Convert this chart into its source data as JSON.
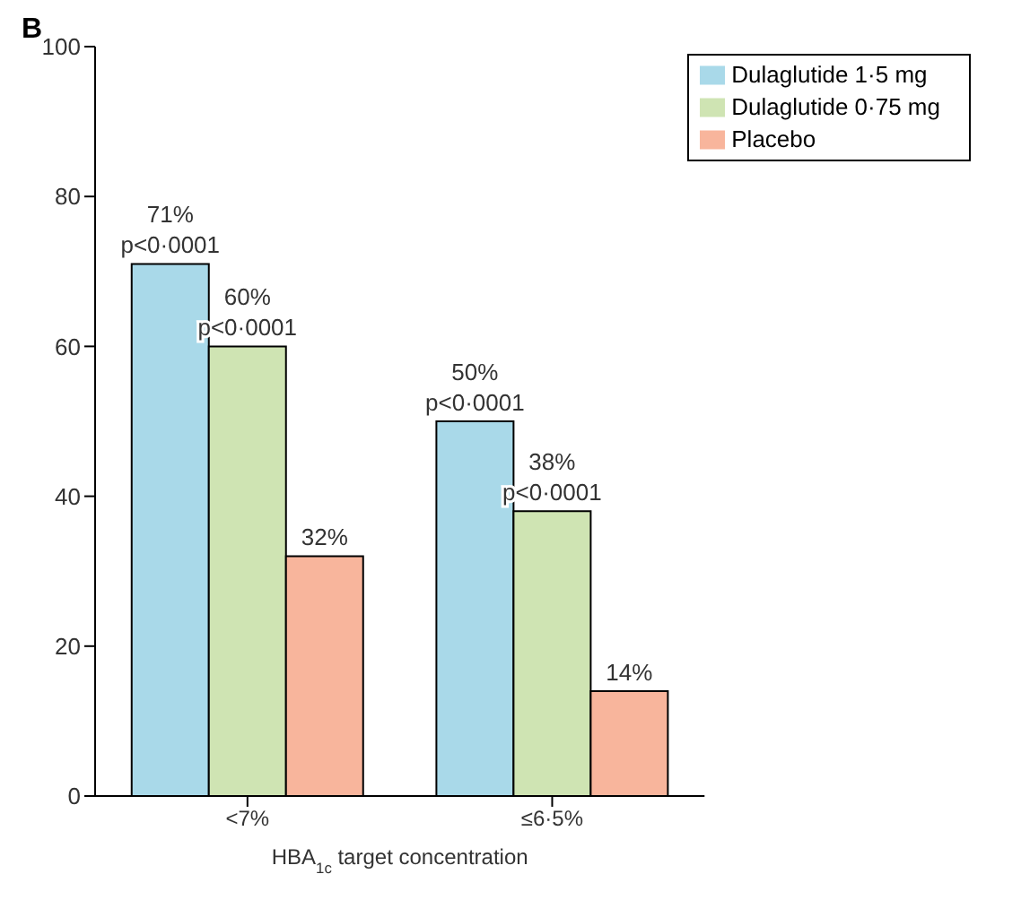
{
  "chart_data": {
    "type": "bar",
    "title": "B",
    "xlabel": "HBA$_{1c}$ target concentration",
    "categories": [
      "<7%",
      "≤6·5%"
    ],
    "series": [
      {
        "name": "Dulaglutide 1·5 mg",
        "color": "#a9d9e9",
        "values": [
          71,
          50
        ],
        "value_labels": [
          "71%\np<0·0001",
          "50%\np<0·0001"
        ]
      },
      {
        "name": "Dulaglutide 0·75 mg",
        "color": "#cfe4b3",
        "values": [
          60,
          38
        ],
        "value_labels": [
          "60%\np<0·0001",
          "38%\np<0·0001"
        ]
      },
      {
        "name": "Placebo",
        "color": "#f8b59c",
        "values": [
          32,
          14
        ],
        "value_labels": [
          "32%",
          "14%"
        ]
      }
    ],
    "ylim": [
      0,
      100
    ],
    "yticks": [
      0,
      20,
      40,
      60,
      80,
      100
    ],
    "grid": false,
    "legend": "top right"
  }
}
